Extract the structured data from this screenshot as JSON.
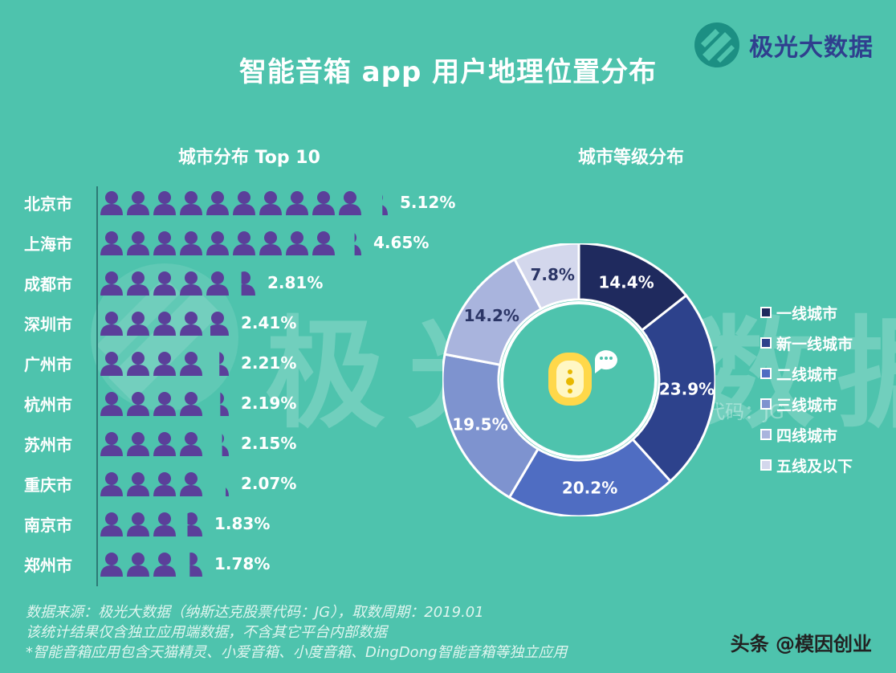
{
  "header": {
    "title": "智能音箱 app 用户地理位置分布",
    "brand": "极光大数据",
    "watermark": "极光大数据"
  },
  "colors": {
    "background": "#4ec3ad",
    "person_icon": "#5b3f9a",
    "tier_colors": [
      "#1f2a5e",
      "#2d428c",
      "#4f6dc2",
      "#7e93cf",
      "#a9b4dd",
      "#d3d7ec"
    ]
  },
  "chart_data": [
    {
      "type": "bar",
      "title": "城市分布 Top 10",
      "categories": [
        "北京市",
        "上海市",
        "成都市",
        "深圳市",
        "广州市",
        "杭州市",
        "苏州市",
        "重庆市",
        "南京市",
        "郑州市"
      ],
      "values": [
        5.12,
        4.65,
        2.81,
        2.41,
        2.21,
        2.19,
        2.15,
        2.07,
        1.83,
        1.78
      ],
      "labels": [
        "5.12%",
        "4.65%",
        "2.81%",
        "2.41%",
        "2.21%",
        "2.19%",
        "2.15%",
        "2.07%",
        "1.83%",
        "1.78%"
      ],
      "unit": "%",
      "marker": "person-icon"
    },
    {
      "type": "pie",
      "title": "城市等级分布",
      "donut": true,
      "categories": [
        "一线城市",
        "新一线城市",
        "二线城市",
        "三线城市",
        "四线城市",
        "五线及以下"
      ],
      "values": [
        14.4,
        23.9,
        20.2,
        19.5,
        14.2,
        7.8
      ],
      "labels": [
        "14.4%",
        "23.9%",
        "20.2%",
        "19.5%",
        "14.2%",
        "7.8%"
      ],
      "legend_position": "right"
    }
  ],
  "center_badge": "smart-speaker-icon",
  "ghost_text": "纳斯达克股票代码：JG",
  "footer": {
    "note1": "数据来源：极光大数据（纳斯达克股票代码：JG），取数周期：2019.01",
    "note2": "该统计结果仅含独立应用端数据，不含其它平台内部数据",
    "note3": "*智能音箱应用包含天猫精灵、小爱音箱、小度音箱、DingDong智能音箱等独立应用",
    "credit": "头条 @模因创业"
  }
}
